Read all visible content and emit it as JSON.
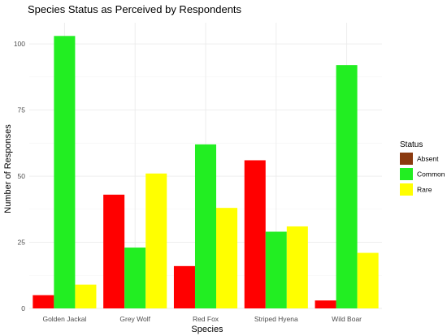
{
  "chart_data": {
    "type": "bar",
    "title": "Species Status as Perceived by Respondents",
    "xlabel": "Species",
    "ylabel": "Number of Responses",
    "categories": [
      "Golden Jackal",
      "Grey Wolf",
      "Red Fox",
      "Striped Hyena",
      "Wild Boar"
    ],
    "series": [
      {
        "name": "Absent",
        "values": [
          5,
          43,
          16,
          56,
          3
        ],
        "color": "#ff0000",
        "legend_color": "#8b3a0f"
      },
      {
        "name": "Common",
        "values": [
          103,
          23,
          62,
          29,
          92
        ],
        "color": "#22ee22",
        "legend_color": "#22ee22"
      },
      {
        "name": "Rare",
        "values": [
          9,
          51,
          38,
          31,
          21
        ],
        "color": "#ffff00",
        "legend_color": "#ffff00"
      }
    ],
    "ylim": [
      0,
      108
    ],
    "yticks": [
      0,
      25,
      50,
      75,
      100
    ],
    "grid": true,
    "legend": {
      "title": "Status",
      "position": "right"
    }
  }
}
